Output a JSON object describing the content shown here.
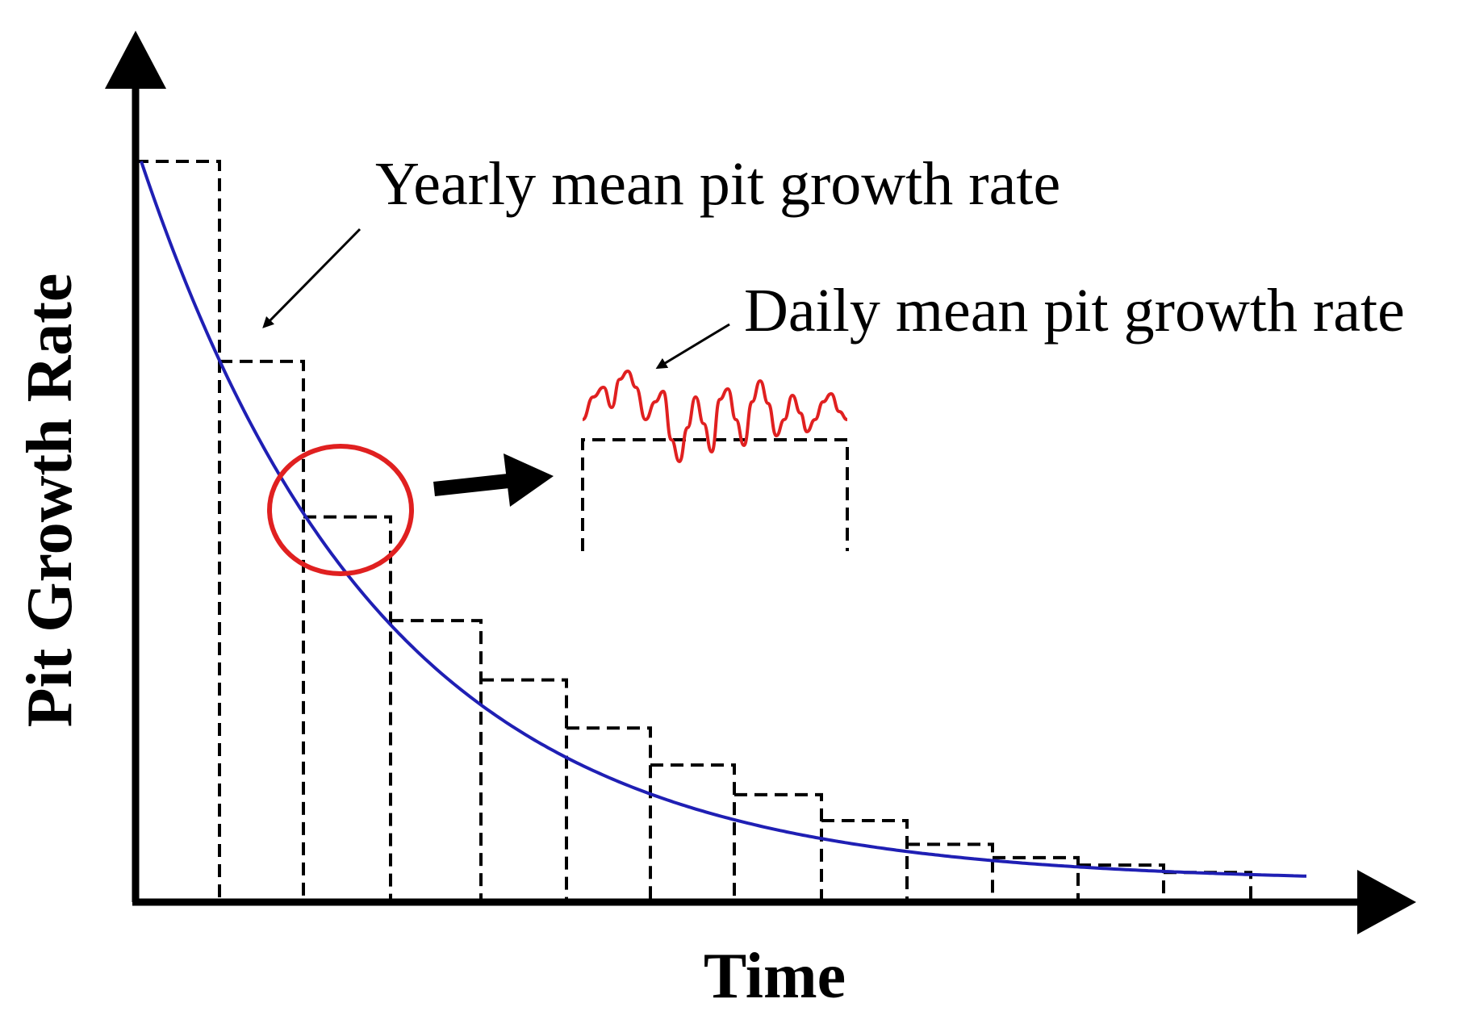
{
  "diagram": {
    "title": "",
    "y_axis_label": "Pit Growth Rate",
    "x_axis_label": "Time",
    "annotation_yearly": "Yearly mean pit growth rate",
    "annotation_daily": "Daily mean pit growth rate",
    "colors": {
      "curve": "#1f1fb4",
      "daily_fluctuation": "#e02020",
      "highlight_circle": "#e02020",
      "axes": "#000000",
      "step_lines": "#000000"
    }
  },
  "chart_data": {
    "type": "step-and-curve",
    "description_units": "arbitrary (no tick values shown)",
    "curve": {
      "name": "Pit growth rate",
      "model": "exponential decay"
    },
    "yearly_steps": {
      "name": "Yearly mean pit growth rate",
      "interval_count": 13,
      "values_relative": [
        1.0,
        0.73,
        0.52,
        0.38,
        0.3,
        0.235,
        0.185,
        0.145,
        0.11,
        0.078,
        0.06,
        0.05,
        0.04
      ]
    },
    "daily_inset": {
      "name": "Daily mean pit growth rate",
      "pattern": "fluctuation around yearly mean"
    }
  }
}
